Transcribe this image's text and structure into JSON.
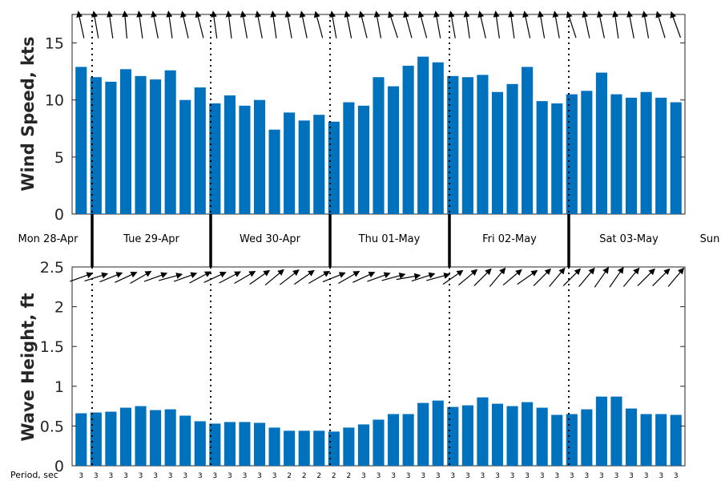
{
  "chart_data": [
    {
      "type": "bar",
      "ylabel": "Wind Speed, kts",
      "ylim": [
        0,
        17.5
      ],
      "yticks": [
        "0",
        "5",
        "10",
        "15"
      ],
      "values": [
        12.9,
        12.0,
        11.6,
        12.7,
        12.1,
        11.8,
        12.6,
        10.0,
        11.1,
        9.7,
        10.4,
        9.5,
        10.0,
        7.4,
        8.9,
        8.2,
        8.7,
        8.1,
        9.8,
        9.5,
        12.0,
        11.2,
        13.0,
        13.8,
        13.3,
        12.1,
        12.0,
        12.2,
        10.7,
        11.4,
        12.9,
        9.9,
        9.7,
        10.5,
        10.8,
        12.4,
        10.5,
        10.2,
        10.7,
        10.2,
        9.8
      ],
      "direction_arrows_deg": [
        258,
        260,
        262,
        265,
        262,
        259,
        262,
        257,
        256,
        262,
        263,
        260,
        259,
        262,
        260,
        258,
        255,
        260,
        259,
        256,
        260,
        252,
        255,
        255,
        260,
        260,
        262,
        257,
        262,
        262,
        258,
        260,
        260,
        252,
        258,
        258,
        262,
        259,
        260,
        253,
        250
      ],
      "color": "#0072bd",
      "grid": false
    },
    {
      "type": "bar",
      "ylabel": "Wave Height, ft",
      "ylim": [
        0,
        2.5
      ],
      "yticks": [
        "0",
        "0.5",
        "1",
        "1.5",
        "2",
        "2.5"
      ],
      "values": [
        0.66,
        0.67,
        0.68,
        0.73,
        0.75,
        0.7,
        0.71,
        0.63,
        0.56,
        0.53,
        0.55,
        0.55,
        0.54,
        0.48,
        0.44,
        0.44,
        0.44,
        0.43,
        0.48,
        0.52,
        0.58,
        0.65,
        0.65,
        0.79,
        0.82,
        0.74,
        0.76,
        0.86,
        0.78,
        0.75,
        0.8,
        0.73,
        0.64,
        0.65,
        0.71,
        0.87,
        0.87,
        0.72,
        0.65,
        0.65,
        0.64
      ],
      "direction_arrows_deg": [
        -20,
        -18,
        -22,
        -25,
        -30,
        -20,
        -15,
        -20,
        -28,
        -25,
        -28,
        -30,
        -35,
        -40,
        -38,
        -35,
        -30,
        -22,
        -30,
        -25,
        -20,
        -15,
        -10,
        -18,
        -15,
        -35,
        -40,
        -45,
        -50,
        -40,
        -35,
        -45,
        -50,
        -45,
        -50,
        -55,
        -55,
        -50,
        -45,
        -45,
        -50
      ],
      "color": "#0072bd",
      "grid": false
    }
  ],
  "days": [
    "Mon 28-Apr",
    "Tue 29-Apr",
    "Wed 30-Apr",
    "Thu 01-May",
    "Fri 02-May",
    "Sat 03-May",
    "Sun"
  ],
  "period_label": "Period, sec",
  "periods": [
    "3",
    "3",
    "3",
    "3",
    "3",
    "3",
    "3",
    "3",
    "3",
    "3",
    "3",
    "3",
    "3",
    "3",
    "2",
    "2",
    "2",
    "2",
    "2",
    "3",
    "3",
    "3",
    "3",
    "3",
    "3",
    "3",
    "3",
    "3",
    "3",
    "3",
    "3",
    "3",
    "3",
    "3",
    "3",
    "3",
    "3",
    "3",
    "3",
    "3",
    "3"
  ]
}
